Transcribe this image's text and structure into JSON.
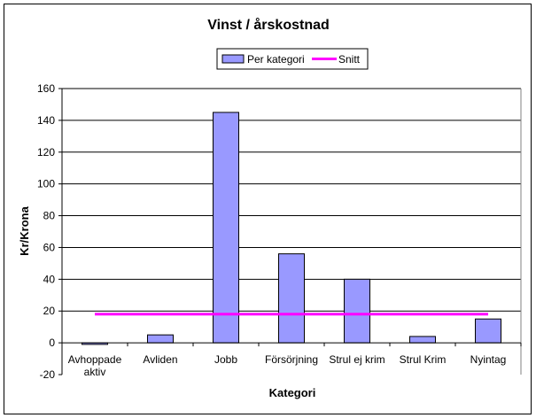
{
  "chart_data": {
    "type": "bar",
    "title": "Vinst / årskostnad",
    "xlabel": "Kategori",
    "ylabel": "Kr/Krona",
    "ylim": [
      -20,
      160
    ],
    "yticks": [
      -20,
      0,
      20,
      40,
      60,
      80,
      100,
      120,
      140,
      160
    ],
    "categories": [
      [
        "Avhoppade",
        "aktiv"
      ],
      [
        "Avliden"
      ],
      [
        "Jobb"
      ],
      [
        "Försörjning"
      ],
      [
        "Strul ej krim"
      ],
      [
        "Strul Krim"
      ],
      [
        "Nyintag"
      ]
    ],
    "series": [
      {
        "name": "Per kategori",
        "kind": "bar",
        "color": "#9999ff",
        "values": [
          -1,
          5,
          145,
          56,
          40,
          4,
          15
        ]
      },
      {
        "name": "Snitt",
        "kind": "line",
        "color": "#ff00ff",
        "values": [
          18,
          18,
          18,
          18,
          18,
          18,
          18
        ]
      }
    ],
    "grid": true,
    "legend_position": "top"
  }
}
